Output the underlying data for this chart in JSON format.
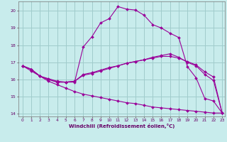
{
  "xlabel": "Windchill (Refroidissement éolien,°C)",
  "bg_color": "#c8ecec",
  "grid_color": "#a0cccc",
  "line_color": "#990099",
  "xlim": [
    -0.5,
    23.3
  ],
  "ylim": [
    13.85,
    20.55
  ],
  "yticks": [
    14,
    15,
    16,
    17,
    18,
    19,
    20
  ],
  "xticks": [
    0,
    1,
    2,
    3,
    4,
    5,
    6,
    7,
    8,
    9,
    10,
    11,
    12,
    13,
    14,
    15,
    16,
    17,
    18,
    19,
    20,
    21,
    22,
    23
  ],
  "lines": [
    {
      "x": [
        0,
        1,
        2,
        3,
        4,
        5,
        6,
        7,
        8,
        9,
        10,
        11,
        12,
        13,
        14,
        15,
        16,
        17,
        18,
        19,
        20,
        21,
        22,
        23
      ],
      "y": [
        16.8,
        16.6,
        16.2,
        16.0,
        15.85,
        15.85,
        15.85,
        17.9,
        18.5,
        19.3,
        19.55,
        20.25,
        20.1,
        20.05,
        19.75,
        19.2,
        19.0,
        18.7,
        18.45,
        16.75,
        16.1,
        14.9,
        14.75,
        14.05
      ]
    },
    {
      "x": [
        0,
        1,
        2,
        3,
        4,
        5,
        6,
        7,
        8,
        9,
        10,
        11,
        12,
        13,
        14,
        15,
        16,
        17,
        18,
        19,
        20,
        21,
        22,
        23
      ],
      "y": [
        16.8,
        16.6,
        16.2,
        16.0,
        15.85,
        15.85,
        15.9,
        16.3,
        16.4,
        16.55,
        16.7,
        16.8,
        16.95,
        17.05,
        17.15,
        17.25,
        17.35,
        17.35,
        17.25,
        17.05,
        16.85,
        16.45,
        16.15,
        14.05
      ]
    },
    {
      "x": [
        0,
        1,
        2,
        3,
        4,
        5,
        6,
        7,
        8,
        9,
        10,
        11,
        12,
        13,
        14,
        15,
        16,
        17,
        18,
        19,
        20,
        21,
        22,
        23
      ],
      "y": [
        16.8,
        16.6,
        16.2,
        16.05,
        15.9,
        15.85,
        15.9,
        16.25,
        16.35,
        16.5,
        16.65,
        16.8,
        16.95,
        17.05,
        17.15,
        17.3,
        17.4,
        17.5,
        17.3,
        17.0,
        16.8,
        16.3,
        15.95,
        14.05
      ]
    },
    {
      "x": [
        0,
        1,
        2,
        3,
        4,
        5,
        6,
        7,
        8,
        9,
        10,
        11,
        12,
        13,
        14,
        15,
        16,
        17,
        18,
        19,
        20,
        21,
        22,
        23
      ],
      "y": [
        16.8,
        16.5,
        16.2,
        15.9,
        15.7,
        15.5,
        15.3,
        15.15,
        15.05,
        14.95,
        14.85,
        14.75,
        14.65,
        14.6,
        14.5,
        14.4,
        14.35,
        14.3,
        14.25,
        14.2,
        14.15,
        14.1,
        14.05,
        14.05
      ]
    }
  ]
}
